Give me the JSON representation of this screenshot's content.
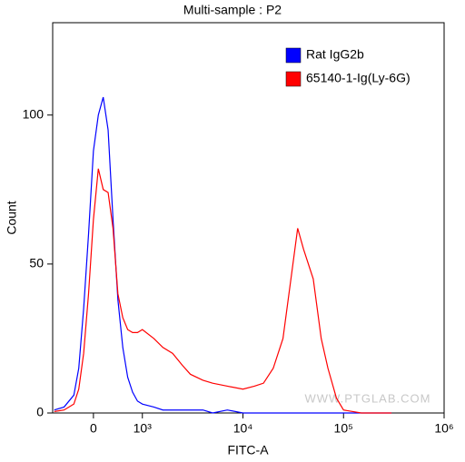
{
  "chart_data": {
    "type": "line",
    "title": "Multi-sample : P2",
    "x_label": "FITC-A",
    "y_label": "Count",
    "watermark": "WWW.PTGLAB.COM",
    "xscale": "biexponential",
    "x": [
      -800,
      -600,
      -400,
      -300,
      -200,
      -100,
      0,
      100,
      200,
      300,
      400,
      500,
      600,
      700,
      800,
      900,
      1000,
      1300,
      1600,
      2000,
      2500,
      3000,
      4000,
      5000,
      7000,
      10000,
      13000,
      16000,
      20000,
      25000,
      30000,
      35000,
      40000,
      50000,
      60000,
      70000,
      85000,
      100000,
      150000,
      300000
    ],
    "series": [
      {
        "name": "Rat IgG2b",
        "color": "#0000ff",
        "values": [
          1,
          2,
          6,
          15,
          35,
          60,
          88,
          100,
          106,
          95,
          65,
          38,
          22,
          12,
          7,
          4,
          3,
          2,
          1,
          1,
          1,
          1,
          1,
          0,
          1,
          0,
          0,
          0,
          0,
          0,
          0,
          0,
          0,
          0,
          0,
          0,
          0,
          0,
          0,
          0
        ]
      },
      {
        "name": "65140-1-Ig(Ly-6G)",
        "color": "#ff0000",
        "values": [
          0.5,
          1,
          3,
          8,
          20,
          40,
          65,
          82,
          75,
          74,
          62,
          40,
          32,
          28,
          27,
          27,
          28,
          25,
          22,
          20,
          16,
          13,
          11,
          10,
          9,
          8,
          9,
          10,
          15,
          25,
          45,
          62,
          55,
          45,
          25,
          15,
          5,
          1,
          0,
          0
        ]
      }
    ],
    "xlim": [
      -833,
      1000000
    ],
    "xticks": [
      0,
      {
        "value": 1000,
        "label": "10³"
      },
      {
        "value": 10000,
        "label": "10⁴"
      },
      {
        "value": 100000,
        "label": "10⁵"
      },
      {
        "value": 1000000,
        "label": "10⁶"
      }
    ],
    "ylim": [
      0,
      131
    ],
    "yticks": [
      0,
      50,
      100
    ],
    "legend": "top-right"
  }
}
